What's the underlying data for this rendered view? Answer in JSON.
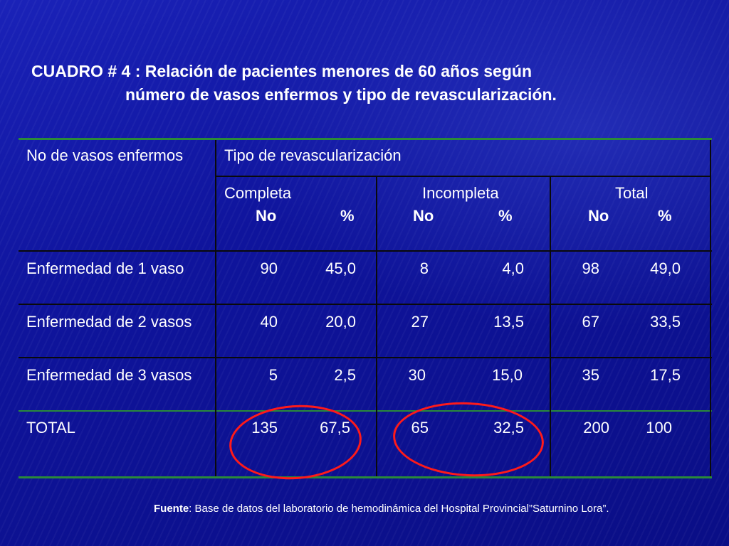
{
  "title": {
    "line1": "CUADRO # 4 : Relación de pacientes menores de 60 años según",
    "line2": "número de vasos enfermos y tipo de revascularización."
  },
  "table": {
    "row_header_label": "No de vasos enfermos",
    "group_header": "Tipo de revascularización",
    "columns": [
      {
        "name": "Completa",
        "no": "No",
        "pct": "%"
      },
      {
        "name": "Incompleta",
        "no": "No",
        "pct": "%"
      },
      {
        "name": "Total",
        "no": "No",
        "pct": "%"
      }
    ],
    "rows": [
      {
        "label": "Enfermedad de 1 vaso",
        "values": [
          "90",
          "45,0",
          "8",
          "4,0",
          "98",
          "49,0"
        ]
      },
      {
        "label": "Enfermedad de 2 vasos",
        "values": [
          "40",
          "20,0",
          "27",
          "13,5",
          "67",
          "33,5"
        ]
      },
      {
        "label": "Enfermedad de 3 vasos",
        "values": [
          "5",
          "2,5",
          "30",
          "15,0",
          "35",
          "17,5"
        ]
      },
      {
        "label": "TOTAL",
        "values": [
          "135",
          "67,5",
          "65",
          "32,5",
          "200",
          "100"
        ]
      }
    ]
  },
  "annotation_color": "#ff1a1a",
  "source": {
    "label": "Fuente",
    "text": ": Base de datos del laboratorio de hemodinámica del Hospital Provincial”Saturnino Lora”."
  }
}
